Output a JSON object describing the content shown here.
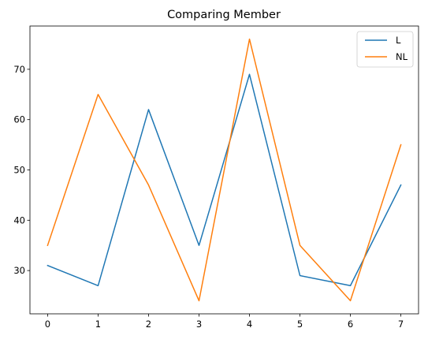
{
  "chart_data": {
    "type": "line",
    "title": "Comparing Member",
    "xlabel": "",
    "ylabel": "",
    "x": [
      0,
      1,
      2,
      3,
      4,
      5,
      6,
      7
    ],
    "series": [
      {
        "name": "L",
        "color": "#1f77b4",
        "values": [
          31,
          27,
          62,
          35,
          69,
          29,
          27,
          47
        ]
      },
      {
        "name": "NL",
        "color": "#ff7f0e",
        "values": [
          35,
          65,
          47,
          24,
          76,
          35,
          24,
          55
        ]
      }
    ],
    "xticks": [
      0,
      1,
      2,
      3,
      4,
      5,
      6,
      7
    ],
    "yticks": [
      30,
      40,
      50,
      60,
      70
    ],
    "xlim": [
      -0.35,
      7.35
    ],
    "ylim": [
      21.4,
      78.6
    ],
    "legend": "top-right",
    "grid": false
  }
}
